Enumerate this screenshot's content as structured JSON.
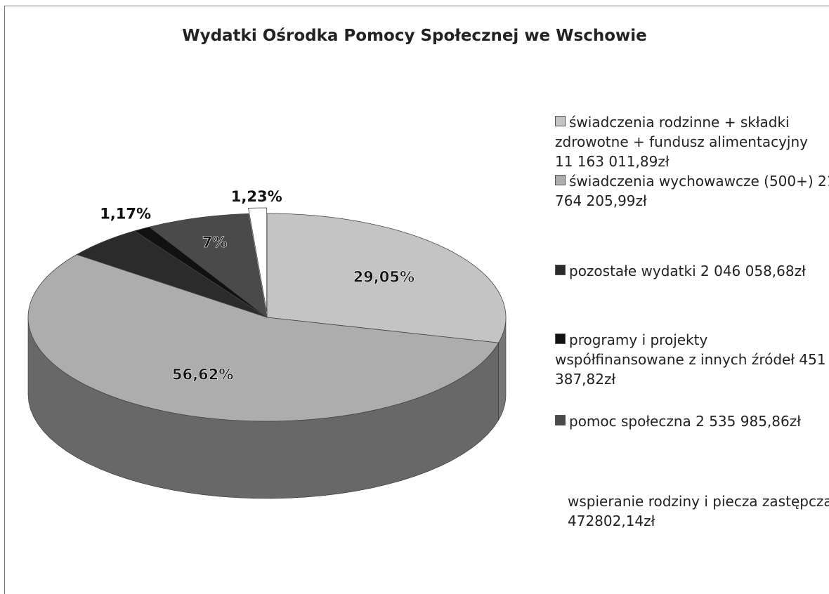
{
  "chart_data": {
    "type": "pie",
    "title": "Wydatki Ośrodka Pomocy Społecznej we Wschowie",
    "categories": [
      "świadczenia rodzinne + składki zdrowotne + fundusz alimentacyjny   11 163 011,89zł",
      "świadczenia wychowawcze (500+) 21 764 205,99zł",
      "pozostałe wydatki 2 046 058,68zł",
      "programy i projekty współfinansowane z innych źródeł 451 387,82zł",
      "pomoc społeczna 2 535 985,86zł",
      "wspieranie rodziny i piecza zastępcza 472802,14zł"
    ],
    "values": [
      29.05,
      56.62,
      5.32,
      1.17,
      7,
      1.23
    ],
    "value_labels": [
      "29,05%",
      "56,62%",
      null,
      "1,17%",
      "7%",
      "1,23%"
    ],
    "colors": [
      "#c4c4c4",
      "#adadad",
      "#2b2b2b",
      "#111111",
      "#4a4a4a",
      "#ffffff"
    ],
    "legend": "right"
  }
}
